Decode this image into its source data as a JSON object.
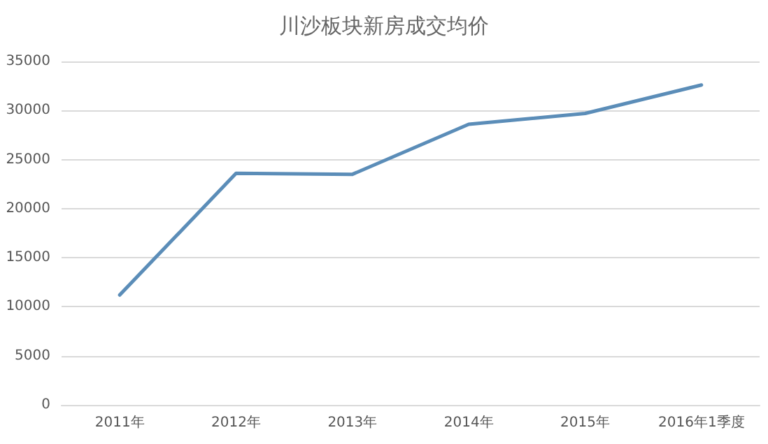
{
  "chart_data": {
    "type": "line",
    "title": "川沙板块新房成交均价",
    "categories": [
      "2011年",
      "2012年",
      "2013年",
      "2014年",
      "2015年",
      "2016年1季度"
    ],
    "series": [
      {
        "color": "#5b8db8",
        "values": [
          11200,
          23600,
          23500,
          28600,
          29700,
          32600
        ]
      }
    ],
    "ylim": [
      0,
      35000
    ],
    "yticks": [
      0,
      5000,
      10000,
      15000,
      20000,
      25000,
      30000,
      35000
    ],
    "grid": "y",
    "marker": "none",
    "line_style": "solid"
  }
}
